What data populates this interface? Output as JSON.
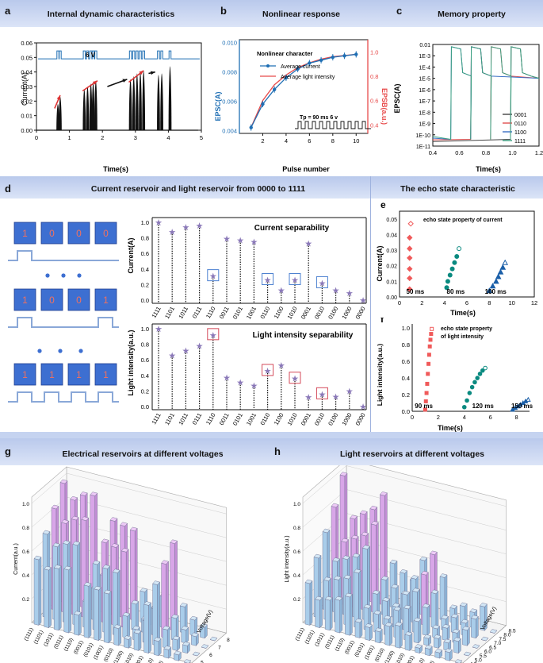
{
  "panels": {
    "a": {
      "letter": "a",
      "title": "Internal dynamic characteristics",
      "xlabel": "Time(s)",
      "ylabel": "Current(A)",
      "pulse_label": "6 V",
      "xticks": [
        "0",
        "1",
        "2",
        "3",
        "4",
        "5"
      ],
      "yticks": [
        "0.00",
        "0.01",
        "0.02",
        "0.03",
        "0.04",
        "0.05",
        "0.06"
      ]
    },
    "b": {
      "letter": "b",
      "title": "Nonlinear response",
      "xlabel": "Pulse number",
      "ylabel_left": "EPSC(A)",
      "ylabel_right": "EPSB(a.u.)",
      "annotation": "Nonlinear character",
      "legend": [
        "Average current",
        "Average light intensity"
      ],
      "pulse_note": "Tp = 90 ms 6 v",
      "xticks": [
        "2",
        "4",
        "6",
        "8",
        "10"
      ],
      "yticks_left": [
        "0.004",
        "0.006",
        "0.008",
        "0.010"
      ],
      "yticks_right": [
        "0.4",
        "0.6",
        "0.8",
        "1.0"
      ]
    },
    "c": {
      "letter": "c",
      "title": "Memory property",
      "xlabel": "Time(s)",
      "ylabel": "EPSC(A)",
      "yticks": [
        "0.01",
        "1E-3",
        "1E-4",
        "1E-5",
        "1E-6",
        "1E-7",
        "1E-8",
        "1E-9",
        "1E-10",
        "1E-11"
      ],
      "xticks": [
        "0.4",
        "0.6",
        "0.8",
        "1.0",
        "1.2"
      ],
      "legend": [
        "0001",
        "0110",
        "1100",
        "1111"
      ]
    },
    "d": {
      "letter": "d",
      "title": "Current reservoir and light reservoir  from 0000 to 1111",
      "box_rows": [
        [
          "1",
          "0",
          "0",
          "0"
        ],
        [
          "1",
          "0",
          "0",
          "1"
        ],
        [
          "1",
          "1",
          "1",
          "1"
        ]
      ],
      "top_label": "Current separability",
      "bottom_label": "Light intensity separability",
      "ylabel_top": "Current(A)",
      "ylabel_bottom": "Light intensity(a.u.)",
      "yticks": [
        "0.0",
        "0.2",
        "0.4",
        "0.6",
        "0.8",
        "1.0"
      ]
    },
    "e": {
      "letter": "e",
      "section_title": "The echo state characteristic",
      "inner_title": "echo state property of current",
      "xlabel": "Time(s)",
      "ylabel": "Current(A)",
      "labels": [
        "50 ms",
        "80 ms",
        "100 ms"
      ],
      "xticks": [
        "0",
        "2",
        "4",
        "6",
        "8",
        "10",
        "12"
      ],
      "yticks": [
        "0.00",
        "0.01",
        "0.02",
        "0.03",
        "0.04",
        "0.05"
      ]
    },
    "f": {
      "letter": "f",
      "inner_title_1": "echo state property",
      "inner_title_2": "of light intensity",
      "xlabel": "Time(s)",
      "ylabel": "Light intensity(a.u.)",
      "labels": [
        "90 ms",
        "120 ms",
        "150 ms"
      ],
      "xticks": [
        "0",
        "2",
        "4",
        "6",
        "8"
      ],
      "yticks": [
        "0.0",
        "0.2",
        "0.4",
        "0.6",
        "0.8",
        "1.0"
      ]
    },
    "g": {
      "letter": "g",
      "title": "Electrical reservoirs at different voltages",
      "zlabel": "Current(a.u.)",
      "vlabel": "Voltage(V)",
      "zticks": [
        "0.2",
        "0.4",
        "0.6",
        "0.8",
        "1.0"
      ],
      "vticks": [
        "5",
        "6",
        "7",
        "8"
      ]
    },
    "h": {
      "letter": "h",
      "title": "Light reservoirs at different voltages",
      "zlabel": "Light intensity(a.u.)",
      "vlabel": "Voltage(V)",
      "zticks": [
        "0.2",
        "0.4",
        "0.6",
        "0.8",
        "1.0"
      ],
      "vticks": [
        "4.5",
        "5.0",
        "5.5",
        "6.0",
        "6.5",
        "7.0",
        "7.5",
        "8.0",
        "8.5"
      ]
    }
  },
  "colors": {
    "band": "#c5d3f0",
    "black": "#111111",
    "blue": "#1f6fb4",
    "red": "#e74a4a",
    "teal": "#0a8a80",
    "navy": "#1b5fa8",
    "star": "#8a78b8",
    "box": "#3d6fd1",
    "purple": "#d8a6e8",
    "lightblue": "#a9cdea"
  },
  "chart_data": [
    {
      "id": "a",
      "type": "line",
      "title": "Internal dynamic characteristics",
      "xlabel": "Time(s)",
      "ylabel": "Current(A)",
      "xlim": [
        0,
        5
      ],
      "ylim": [
        0,
        0.06
      ],
      "series": [
        {
          "name": "spike groups",
          "groups": [
            {
              "x": [
                0.65,
                0.72
              ],
              "peaks": [
                0.018,
                0.023
              ]
            },
            {
              "x": [
                1.45,
                1.55,
                1.65,
                1.72,
                1.8
              ],
              "peaks": [
                0.028,
                0.03,
                0.032,
                0.033,
                0.034
              ]
            },
            {
              "x": [
                2.85,
                2.95,
                3.05,
                3.15,
                3.25
              ],
              "peaks": [
                0.035,
                0.037,
                0.039,
                0.04,
                0.041
              ]
            },
            {
              "x": [
                3.7,
                3.8
              ],
              "peaks": [
                0.038,
                0.039
              ]
            },
            {
              "x": [
                4.05
              ],
              "peaks": [
                0.044
              ]
            }
          ]
        }
      ]
    },
    {
      "id": "b",
      "type": "line",
      "title": "Nonlinear response",
      "xlabel": "Pulse number",
      "xlim": [
        0,
        11
      ],
      "series": [
        {
          "name": "Average current",
          "axis": "left",
          "ylim": [
            0.0038,
            0.0102
          ],
          "x": [
            1,
            2,
            3,
            4,
            5,
            6,
            7,
            8,
            9,
            10
          ],
          "y": [
            0.0042,
            0.0058,
            0.0068,
            0.0076,
            0.0082,
            0.0086,
            0.0088,
            0.009,
            0.0091,
            0.0092
          ]
        },
        {
          "name": "Average light intensity",
          "axis": "right",
          "ylim": [
            0.33,
            1.1
          ],
          "x": [
            1,
            2,
            3,
            4,
            5,
            6,
            7,
            8,
            9,
            10
          ],
          "y": [
            0.38,
            0.6,
            0.73,
            0.81,
            0.87,
            0.91,
            0.94,
            0.96,
            0.97,
            0.98
          ]
        }
      ]
    },
    {
      "id": "c",
      "type": "line",
      "title": "Memory property",
      "xlabel": "Time(s)",
      "ylabel": "EPSC(A)",
      "xlim": [
        0.4,
        1.2
      ],
      "ylim_log10": [
        -11,
        -2
      ],
      "series": [
        {
          "name": "0001",
          "pulses": [
            1.0
          ]
        },
        {
          "name": "0110",
          "pulses": [
            0.7,
            0.85
          ]
        },
        {
          "name": "1100",
          "pulses": [
            0.55,
            0.7
          ]
        },
        {
          "name": "1111",
          "pulses": [
            0.55,
            0.7,
            0.85,
            1.0
          ]
        }
      ]
    },
    {
      "id": "d-top",
      "type": "stem",
      "title": "Current separability",
      "ylim": [
        0,
        1
      ],
      "categories": [
        "1111",
        "1101",
        "1011",
        "0111",
        "1110",
        "0011",
        "0101",
        "1001",
        "0110",
        "1100",
        "1010",
        "0001",
        "0010",
        "0100",
        "1000",
        "0000"
      ],
      "values": [
        1.0,
        0.88,
        0.94,
        0.96,
        0.31,
        0.79,
        0.77,
        0.75,
        0.26,
        0.13,
        0.26,
        0.73,
        0.22,
        0.13,
        0.09,
        0.0
      ],
      "boxed": [
        "1110",
        "0110",
        "1010",
        "0010"
      ]
    },
    {
      "id": "d-bottom",
      "type": "stem",
      "title": "Light intensity separability",
      "ylim": [
        0,
        1
      ],
      "categories": [
        "1111",
        "1101",
        "1011",
        "0111",
        "1110",
        "0011",
        "0101",
        "1001",
        "0110",
        "1100",
        "1010",
        "0001",
        "0010",
        "0100",
        "1000",
        "0000"
      ],
      "values": [
        1.0,
        0.66,
        0.72,
        0.78,
        0.92,
        0.37,
        0.31,
        0.27,
        0.46,
        0.53,
        0.36,
        0.12,
        0.16,
        0.13,
        0.2,
        0.0
      ],
      "boxed": [
        "1110",
        "0110",
        "1010",
        "0010"
      ]
    },
    {
      "id": "e",
      "type": "scatter",
      "title": "echo state property of current",
      "xlabel": "Time(s)",
      "ylabel": "Current(A)",
      "xlim": [
        0,
        12
      ],
      "ylim": [
        0,
        0.055
      ],
      "series": [
        {
          "name": "50 ms",
          "x": [
            0.9,
            0.9,
            0.9,
            0.9,
            0.9,
            0.9,
            1.0
          ],
          "y": [
            0.005,
            0.012,
            0.018,
            0.025,
            0.031,
            0.038,
            0.047
          ]
        },
        {
          "name": "80 ms",
          "x": [
            4.2,
            4.3,
            4.5,
            4.7,
            4.9,
            5.1,
            5.3
          ],
          "y": [
            0.006,
            0.01,
            0.014,
            0.018,
            0.022,
            0.026,
            0.031
          ]
        },
        {
          "name": "100 ms",
          "x": [
            8.0,
            8.3,
            8.6,
            8.8,
            9.0,
            9.2,
            9.4
          ],
          "y": [
            0.004,
            0.007,
            0.01,
            0.013,
            0.016,
            0.019,
            0.022
          ]
        }
      ]
    },
    {
      "id": "f",
      "type": "scatter",
      "title": "echo state property of light intensity",
      "xlabel": "Time(s)",
      "ylabel": "Light intensity(a.u.)",
      "xlim": [
        0,
        9
      ],
      "ylim": [
        0,
        1.05
      ],
      "series": [
        {
          "name": "90 ms",
          "x": [
            1.0,
            1.05,
            1.1,
            1.15,
            1.2,
            1.25,
            1.3,
            1.35,
            1.4,
            1.45,
            1.5
          ],
          "y": [
            0.02,
            0.12,
            0.22,
            0.33,
            0.45,
            0.57,
            0.68,
            0.78,
            0.86,
            0.93,
            0.99
          ]
        },
        {
          "name": "120 ms",
          "x": [
            4.0,
            4.2,
            4.4,
            4.6,
            4.8,
            5.0,
            5.2,
            5.4,
            5.6
          ],
          "y": [
            0.05,
            0.13,
            0.22,
            0.29,
            0.35,
            0.4,
            0.45,
            0.49,
            0.52
          ]
        },
        {
          "name": "150 ms",
          "x": [
            7.7,
            7.9,
            8.1,
            8.3,
            8.5,
            8.7,
            8.9
          ],
          "y": [
            0.02,
            0.04,
            0.06,
            0.08,
            0.1,
            0.12,
            0.14
          ]
        }
      ]
    }
  ]
}
